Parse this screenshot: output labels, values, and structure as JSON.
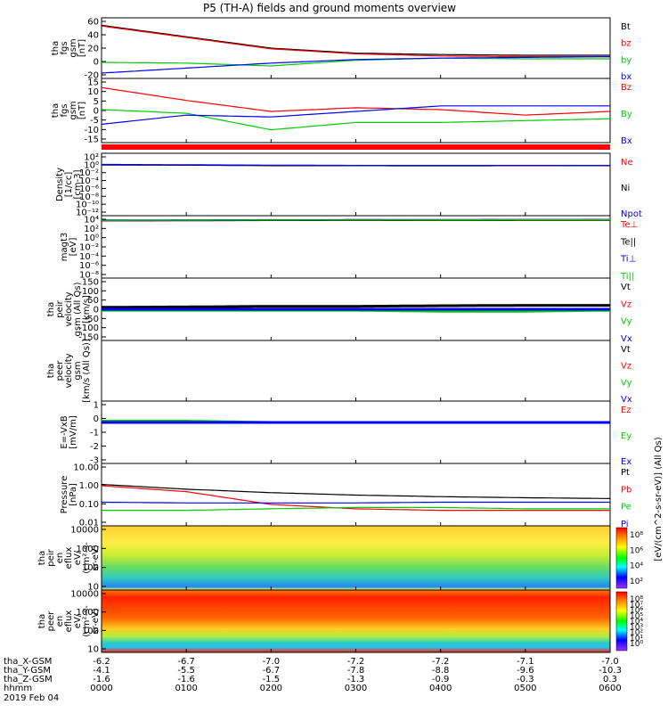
{
  "title": "P5 (TH-A) fields and ground moments overview",
  "panels": [
    {
      "id": "fgs_gsm",
      "ylabel": [
        "tha",
        "fgs",
        "gsm",
        "[nT]"
      ],
      "ticks": [
        "60",
        "40",
        "20",
        "0",
        "-20"
      ],
      "legend": [
        {
          "text": "Bt",
          "color": "#000000"
        },
        {
          "text": "bz",
          "color": "#ff0000"
        },
        {
          "text": "by",
          "color": "#00cc00"
        },
        {
          "text": "bx",
          "color": "#0000ff"
        }
      ]
    },
    {
      "id": "fgs_gsm_zoom",
      "ylabel": [
        "tha",
        "fgs",
        "gsm",
        "[nT]"
      ],
      "ticks": [
        "15",
        "10",
        "5",
        "0",
        "-5",
        "-10",
        "-15"
      ],
      "legend": [
        {
          "text": "Bz",
          "color": "#ff0000"
        },
        {
          "text": "By",
          "color": "#00cc00"
        },
        {
          "text": "Bx",
          "color": "#0000ff"
        }
      ]
    },
    {
      "id": "density",
      "ylabel": [
        "Density",
        "[1/cc]",
        "[cm-3]"
      ],
      "ticks": [
        "10²",
        "10⁰",
        "10⁻²",
        "10⁻⁴",
        "10⁻⁶",
        "10⁻⁸",
        "10⁻¹⁰",
        "10⁻¹²"
      ],
      "legend": [
        {
          "text": "Ne",
          "color": "#ff0000"
        },
        {
          "text": "Ni",
          "color": "#000000"
        },
        {
          "text": "Npot",
          "color": "#0000ff"
        }
      ]
    },
    {
      "id": "temperature",
      "ylabel": [
        "magt3",
        "[eV]"
      ],
      "ticks": [
        "10⁴",
        "10²",
        "10⁰",
        "10⁻²",
        "10⁻⁴",
        "10⁻⁶",
        "10⁻⁸"
      ],
      "legend": [
        {
          "text": "Te⊥",
          "color": "#ff0000"
        },
        {
          "text": "Te||",
          "color": "#000000"
        },
        {
          "text": "Ti⊥",
          "color": "#0000ff"
        },
        {
          "text": "Ti||",
          "color": "#00cc00"
        }
      ]
    },
    {
      "id": "peir_velocity",
      "ylabel": [
        "tha",
        "peir",
        "velocity",
        "gsm (All Qs)",
        "[km/s]"
      ],
      "ticks": [
        "150",
        "100",
        "50",
        "0",
        "-50",
        "-100",
        "-150"
      ],
      "legend": [
        {
          "text": "Vt",
          "color": "#000000"
        },
        {
          "text": "Vz",
          "color": "#ff0000"
        },
        {
          "text": "Vy",
          "color": "#00cc00"
        },
        {
          "text": "Vx",
          "color": "#0000ff"
        }
      ]
    },
    {
      "id": "peer_velocity",
      "ylabel": [
        "tha",
        "peer",
        "velocity",
        "gsm",
        "[km/s (All Qs)]"
      ],
      "ticks": [],
      "legend": [
        {
          "text": "Vt",
          "color": "#000000"
        },
        {
          "text": "Vz",
          "color": "#ff0000"
        },
        {
          "text": "Vy",
          "color": "#00cc00"
        },
        {
          "text": "Vx",
          "color": "#0000ff"
        }
      ]
    },
    {
      "id": "efield",
      "ylabel": [
        "E=-VxB",
        "[mV/m]"
      ],
      "ticks": [
        "1",
        "0",
        "-1",
        "-2",
        "-3"
      ],
      "legend": [
        {
          "text": "Ez",
          "color": "#ff0000"
        },
        {
          "text": "Ey",
          "color": "#00cc00"
        },
        {
          "text": "Ex",
          "color": "#0000ff"
        }
      ]
    },
    {
      "id": "pressure",
      "ylabel": [
        "Pressure",
        "[nPa]"
      ],
      "ticks": [
        "10.00",
        "1.00",
        "0.10",
        "0.01"
      ],
      "legend": [
        {
          "text": "Pt",
          "color": "#000000"
        },
        {
          "text": "Pb",
          "color": "#ff0000"
        },
        {
          "text": "Pe",
          "color": "#00cc00"
        },
        {
          "text": "Pi",
          "color": "#0000ff"
        }
      ],
      "right_label": "[eV/(cm^2-s-sr-eV)] (All Qs)"
    },
    {
      "id": "peir_spec",
      "ylabel": [
        "tha",
        "peir",
        "en",
        "eflux",
        "eV/",
        "(cm²-s-",
        "sr-eV)"
      ],
      "ticks": [
        "10000",
        "1000",
        "100",
        "10"
      ],
      "colorbar_ticks": [
        "10⁸",
        "10⁶",
        "10⁴",
        "10²"
      ]
    },
    {
      "id": "peer_spec",
      "ylabel": [
        "tha",
        "peer",
        "en",
        "eflux",
        "eV/",
        "(cm²-s-",
        "sr-eV)"
      ],
      "ticks": [
        "10000",
        "1000",
        "100",
        "10"
      ],
      "colorbar_ticks": [
        "10⁸",
        "10⁷",
        "10⁶",
        "10⁵",
        "10⁴",
        "10³",
        "10²",
        "10¹",
        "10⁰"
      ]
    }
  ],
  "xaxis": {
    "rows": [
      {
        "label": "tha_X-GSM",
        "values": [
          "-6.2",
          "-6.7",
          "-7.0",
          "-7.2",
          "-7.2",
          "-7.1",
          "-7.0"
        ]
      },
      {
        "label": "tha_Y-GSM",
        "values": [
          "-4.1",
          "-5.5",
          "-6.7",
          "-7.8",
          "-8.8",
          "-9.6",
          "-10.3"
        ]
      },
      {
        "label": "tha_Z-GSM",
        "values": [
          "-1.6",
          "-1.6",
          "-1.5",
          "-1.3",
          "-0.9",
          "-0.3",
          "0.3"
        ]
      },
      {
        "label": "hhmm",
        "values": [
          "0000",
          "0100",
          "0200",
          "0300",
          "0400",
          "0500",
          "0600"
        ]
      }
    ],
    "date": "2019 Feb 04"
  },
  "chart_data": [
    {
      "type": "line",
      "title": "P5 (TH-A) fields and ground moments overview",
      "ylabel": "tha fgs gsm [nT]",
      "ylim": [
        -20,
        60
      ],
      "x": [
        "0000",
        "0100",
        "0200",
        "0300",
        "0400",
        "0500",
        "0600"
      ],
      "series": [
        {
          "name": "Bt",
          "values": [
            52,
            36,
            20,
            13,
            11,
            10,
            10
          ]
        },
        {
          "name": "bz",
          "values": [
            51,
            35,
            19,
            12,
            9,
            8,
            8
          ]
        },
        {
          "name": "by",
          "values": [
            0,
            -1,
            -5,
            3,
            6,
            5,
            5
          ]
        },
        {
          "name": "bx",
          "values": [
            -15,
            -8,
            -1,
            4,
            6,
            7,
            8
          ]
        }
      ]
    },
    {
      "type": "line",
      "ylabel": "tha fgs gsm [nT]",
      "ylim": [
        -18,
        15
      ],
      "x": [
        "0000",
        "0100",
        "0200",
        "0300",
        "0400",
        "0500",
        "0600"
      ],
      "series": [
        {
          "name": "Bz",
          "values": [
            11,
            4,
            -2,
            0,
            -1,
            -4,
            -2
          ]
        },
        {
          "name": "By",
          "values": [
            -1,
            -3,
            -12,
            -8,
            -8,
            -7,
            -6
          ]
        },
        {
          "name": "Bx",
          "values": [
            -9,
            -4,
            -5,
            -2,
            1,
            1,
            1
          ]
        }
      ]
    },
    {
      "type": "line",
      "ylabel": "Density [1/cc] [cm-3]",
      "ylim": [
        1e-12,
        100
      ],
      "x": [
        "0000",
        "0100",
        "0200",
        "0300",
        "0400",
        "0500",
        "0600"
      ],
      "series": [
        {
          "name": "Ne",
          "values": [
            0.5,
            0.4,
            0.35,
            0.3,
            0.3,
            0.3,
            0.3
          ]
        },
        {
          "name": "Ni",
          "values": [
            0.45,
            0.4,
            0.3,
            0.3,
            0.28,
            0.3,
            0.3
          ]
        },
        {
          "name": "Npot",
          "values": [
            0.6,
            0.5,
            0.4,
            0.35,
            0.35,
            0.33,
            0.35
          ]
        }
      ]
    },
    {
      "type": "line",
      "ylabel": "magt3 [eV]",
      "ylim": [
        1e-08,
        10000
      ],
      "x": [
        "0000",
        "0100",
        "0200",
        "0300",
        "0400",
        "0500",
        "0600"
      ],
      "series": [
        {
          "name": "Te⊥",
          "values": [
            2000,
            2100,
            2400,
            2500,
            2600,
            2700,
            2800
          ]
        },
        {
          "name": "Te||",
          "values": [
            2200,
            2300,
            2500,
            2600,
            2700,
            2800,
            2900
          ]
        },
        {
          "name": "Ti⊥",
          "values": [
            3000,
            3200,
            3500,
            3600,
            3800,
            4000,
            4100
          ]
        },
        {
          "name": "Ti||",
          "values": [
            2500,
            2700,
            3000,
            3100,
            3300,
            3500,
            3600
          ]
        }
      ]
    },
    {
      "type": "line",
      "ylabel": "tha peir velocity gsm (All Qs) [km/s]",
      "ylim": [
        -150,
        150
      ],
      "x": [
        "0000",
        "0100",
        "0200",
        "0300",
        "0400",
        "0500",
        "0600"
      ],
      "series": [
        {
          "name": "Vt",
          "values": [
            10,
            12,
            15,
            15,
            18,
            20,
            20
          ]
        },
        {
          "name": "Vz",
          "values": [
            0,
            0,
            0,
            0,
            0,
            0,
            0
          ]
        },
        {
          "name": "Vy",
          "values": [
            -5,
            -5,
            -5,
            -5,
            -10,
            -10,
            -5
          ]
        },
        {
          "name": "Vx",
          "values": [
            0,
            0,
            0,
            0,
            0,
            0,
            0
          ]
        }
      ]
    },
    {
      "type": "line",
      "ylabel": "E=-VxB [mV/m]",
      "ylim": [
        -3,
        1.5
      ],
      "x": [
        "0000",
        "0100",
        "0200",
        "0300",
        "0400",
        "0500",
        "0600"
      ],
      "series": [
        {
          "name": "Ez",
          "values": [
            0,
            0,
            0,
            0,
            0,
            0,
            0
          ]
        },
        {
          "name": "Ey",
          "values": [
            0.1,
            0.1,
            0,
            0,
            0,
            0,
            0
          ]
        },
        {
          "name": "Ex",
          "values": [
            0,
            0,
            0,
            0,
            0,
            0,
            0
          ]
        }
      ]
    },
    {
      "type": "line",
      "ylabel": "Pressure [nPa]",
      "ylim": [
        0.01,
        10
      ],
      "x": [
        "0000",
        "0100",
        "0200",
        "0300",
        "0400",
        "0500",
        "0600"
      ],
      "series": [
        {
          "name": "Pt",
          "values": [
            1.05,
            0.6,
            0.4,
            0.3,
            0.25,
            0.22,
            0.2
          ]
        },
        {
          "name": "Pb",
          "values": [
            0.9,
            0.45,
            0.1,
            0.06,
            0.05,
            0.05,
            0.05
          ]
        },
        {
          "name": "Pe",
          "values": [
            0.05,
            0.05,
            0.06,
            0.07,
            0.07,
            0.06,
            0.06
          ]
        },
        {
          "name": "Pi",
          "values": [
            0.13,
            0.12,
            0.12,
            0.12,
            0.13,
            0.13,
            0.13
          ]
        }
      ]
    },
    {
      "type": "heatmap",
      "ylabel": "tha peir en eflux eV/(cm²-s-sr-eV)",
      "ylim": [
        7,
        20000
      ],
      "x": [
        "0000",
        "0100",
        "0200",
        "0300",
        "0400",
        "0500",
        "0600"
      ]
    },
    {
      "type": "heatmap",
      "ylabel": "tha peer en eflux eV/(cm²-s-sr-eV)",
      "ylim": [
        7,
        20000
      ],
      "x": [
        "0000",
        "0100",
        "0200",
        "0300",
        "0400",
        "0500",
        "0600"
      ]
    }
  ]
}
